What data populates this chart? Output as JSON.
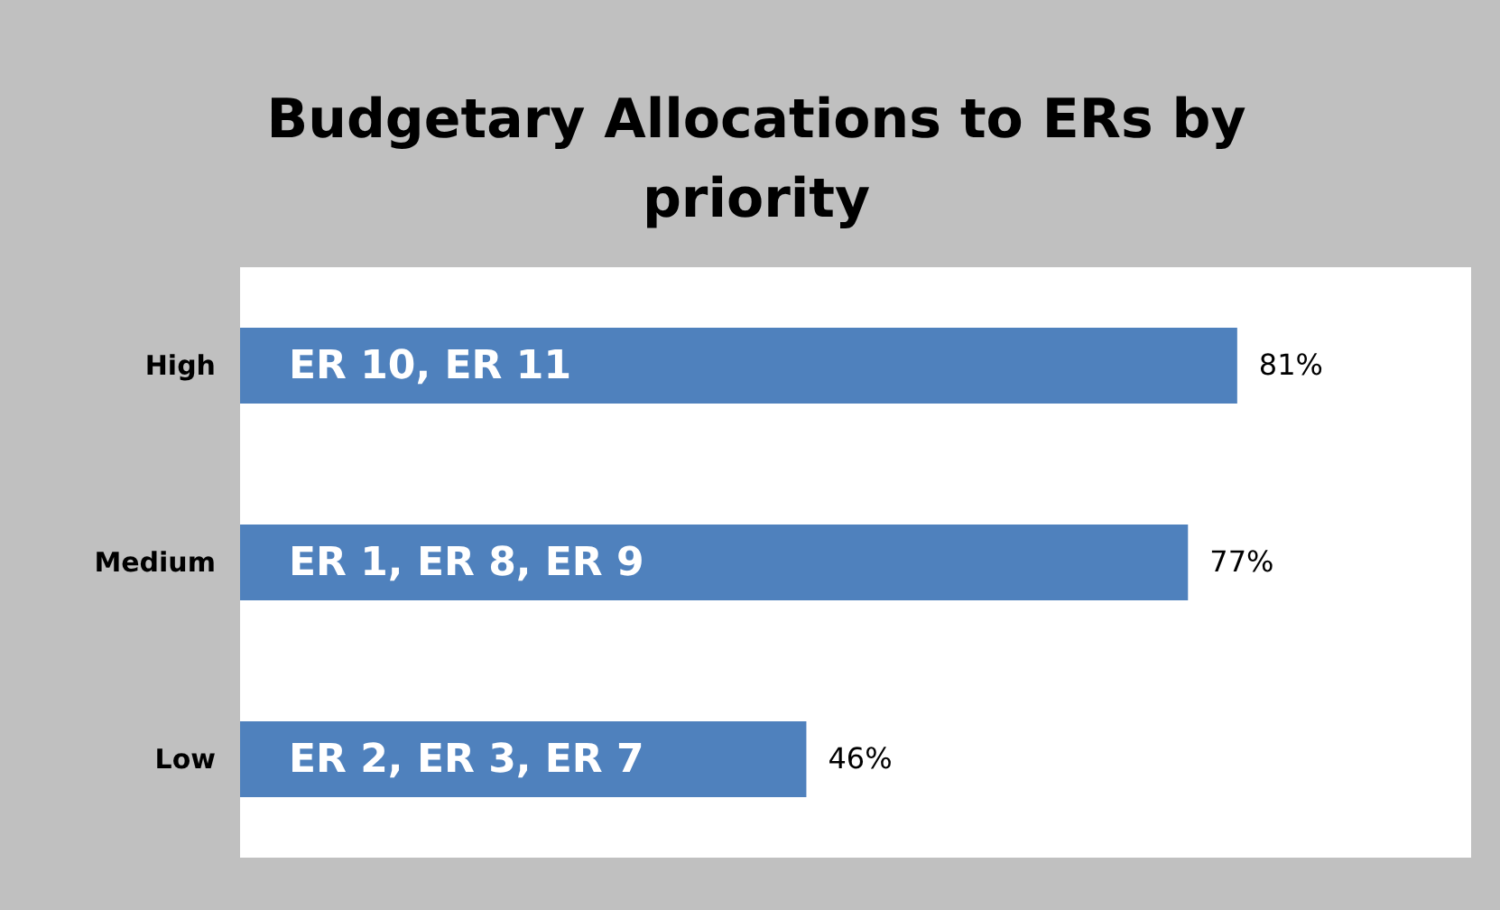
{
  "chart_data": {
    "type": "bar",
    "orientation": "horizontal",
    "title": "Budgetary Allocations to ERs by priority",
    "categories": [
      "High",
      "Medium",
      "Low"
    ],
    "values": [
      81,
      77,
      46
    ],
    "color": "#4f81bd",
    "value_labels": [
      "81%",
      "77%",
      "46%"
    ],
    "annotations": [
      "ER 10, ER 11",
      "ER 1, ER 8, ER 9",
      "ER 2, ER 3, ER 7"
    ],
    "xlim": [
      0,
      100
    ],
    "tick_labels": "y"
  }
}
